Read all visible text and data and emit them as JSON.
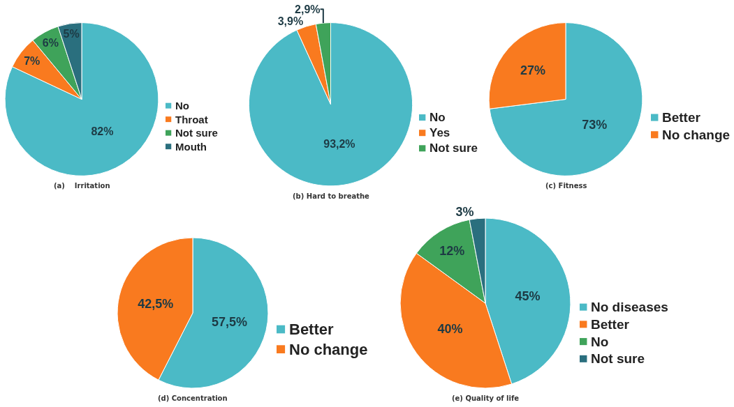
{
  "chart_data": [
    {
      "type": "pie",
      "title": "(a)    Irritation",
      "categories": [
        "No",
        "Throat",
        "Not sure",
        "Mouth"
      ],
      "values": [
        82,
        7,
        6,
        5
      ],
      "value_labels": [
        "82%",
        "7%",
        "6%",
        "5%"
      ],
      "colors": [
        "#4bbac6",
        "#f97a1f",
        "#3fa35a",
        "#2a6f7e"
      ],
      "legend": "right"
    },
    {
      "type": "pie",
      "title": "(b) Hard to breathe",
      "categories": [
        "No",
        "Yes",
        "Not sure"
      ],
      "values": [
        93.2,
        3.9,
        2.9
      ],
      "value_labels": [
        "93,2%",
        "3,9%",
        "2,9%"
      ],
      "colors": [
        "#4bbac6",
        "#f97a1f",
        "#3fa35a"
      ],
      "legend": "right"
    },
    {
      "type": "pie",
      "title": "(c) Fitness",
      "categories": [
        "Better",
        "No change"
      ],
      "values": [
        73,
        27
      ],
      "value_labels": [
        "73%",
        "27%"
      ],
      "colors": [
        "#4bbac6",
        "#f97a1f"
      ],
      "legend": "right"
    },
    {
      "type": "pie",
      "title": "(d) Concentration",
      "categories": [
        "Better",
        "No change"
      ],
      "values": [
        57.5,
        42.5
      ],
      "value_labels": [
        "57,5%",
        "42,5%"
      ],
      "colors": [
        "#4bbac6",
        "#f97a1f"
      ],
      "legend": "right"
    },
    {
      "type": "pie",
      "title": "(e) Quality of life",
      "categories": [
        "No diseases",
        "Better",
        "No",
        "Not sure"
      ],
      "values": [
        45,
        40,
        12,
        3
      ],
      "value_labels": [
        "45%",
        "40%",
        "12%",
        "3%"
      ],
      "colors": [
        "#4bbac6",
        "#f97a1f",
        "#3fa35a",
        "#2a6f7e"
      ],
      "legend": "right"
    }
  ]
}
